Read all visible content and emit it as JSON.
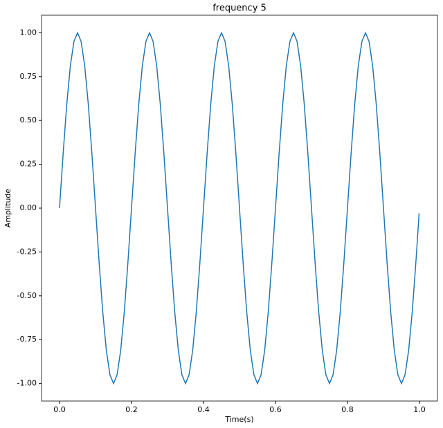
{
  "chart_data": {
    "type": "line",
    "title": "frequency 5",
    "xlabel": "Time(s)",
    "ylabel": "Amplitude",
    "color": "#1f77b4",
    "x": [
      0,
      0.01,
      0.02,
      0.03,
      0.04,
      0.05,
      0.06,
      0.07,
      0.08,
      0.09,
      0.1,
      0.11,
      0.12,
      0.13,
      0.14,
      0.15,
      0.16,
      0.17,
      0.18,
      0.19,
      0.2,
      0.21,
      0.22,
      0.23,
      0.24,
      0.25,
      0.26,
      0.27,
      0.28,
      0.29,
      0.3,
      0.31,
      0.32,
      0.33,
      0.34,
      0.35,
      0.36,
      0.37,
      0.38,
      0.39,
      0.4,
      0.41,
      0.42,
      0.43,
      0.44,
      0.45,
      0.46,
      0.47,
      0.48,
      0.49,
      0.5,
      0.51,
      0.52,
      0.53,
      0.54,
      0.55,
      0.56,
      0.57,
      0.58,
      0.59,
      0.6,
      0.61,
      0.62,
      0.63,
      0.64,
      0.65,
      0.66,
      0.67,
      0.68,
      0.69,
      0.7,
      0.71,
      0.72,
      0.73,
      0.74,
      0.75,
      0.76,
      0.77,
      0.78,
      0.79,
      0.8,
      0.81,
      0.82,
      0.83,
      0.84,
      0.85,
      0.86,
      0.87,
      0.88,
      0.89,
      0.9,
      0.91,
      0.92,
      0.93,
      0.94,
      0.95,
      0.96,
      0.97,
      0.98,
      0.99,
      0.999
    ],
    "values": [
      0,
      0.31,
      0.59,
      0.81,
      0.95,
      1,
      0.95,
      0.81,
      0.59,
      0.31,
      0,
      -0.31,
      -0.59,
      -0.81,
      -0.95,
      -1,
      -0.95,
      -0.81,
      -0.59,
      -0.31,
      0,
      0.31,
      0.59,
      0.81,
      0.95,
      1,
      0.95,
      0.81,
      0.59,
      0.31,
      0,
      -0.31,
      -0.59,
      -0.81,
      -0.95,
      -1,
      -0.95,
      -0.81,
      -0.59,
      -0.31,
      0,
      0.31,
      0.59,
      0.81,
      0.95,
      1,
      0.95,
      0.81,
      0.59,
      0.31,
      0,
      -0.31,
      -0.59,
      -0.81,
      -0.95,
      -1,
      -0.95,
      -0.81,
      -0.59,
      -0.31,
      0,
      0.31,
      0.59,
      0.81,
      0.95,
      1,
      0.95,
      0.81,
      0.59,
      0.31,
      0,
      -0.31,
      -0.59,
      -0.81,
      -0.95,
      -1,
      -0.95,
      -0.81,
      -0.59,
      -0.31,
      0,
      0.31,
      0.59,
      0.81,
      0.95,
      1,
      0.95,
      0.81,
      0.59,
      0.31,
      0,
      -0.31,
      -0.59,
      -0.81,
      -0.95,
      -1,
      -0.95,
      -0.81,
      -0.59,
      -0.31,
      -0.03
    ],
    "xlim": [
      -0.05,
      1.05
    ],
    "ylim": [
      -1.1,
      1.1
    ],
    "xticks": [
      {
        "value": 0,
        "label": "0.0"
      },
      0.2,
      0.4,
      0.6,
      0.8,
      {
        "value": 1,
        "label": "1.0"
      }
    ],
    "yticks": [
      {
        "value": -1,
        "label": "-1.00"
      },
      -0.75,
      {
        "value": -0.5,
        "label": "-0.50"
      },
      -0.25,
      {
        "value": 0,
        "label": "0.00"
      },
      0.25,
      {
        "value": 0.5,
        "label": "0.50"
      },
      0.75,
      {
        "value": 1,
        "label": "1.00"
      }
    ],
    "grid": false
  }
}
